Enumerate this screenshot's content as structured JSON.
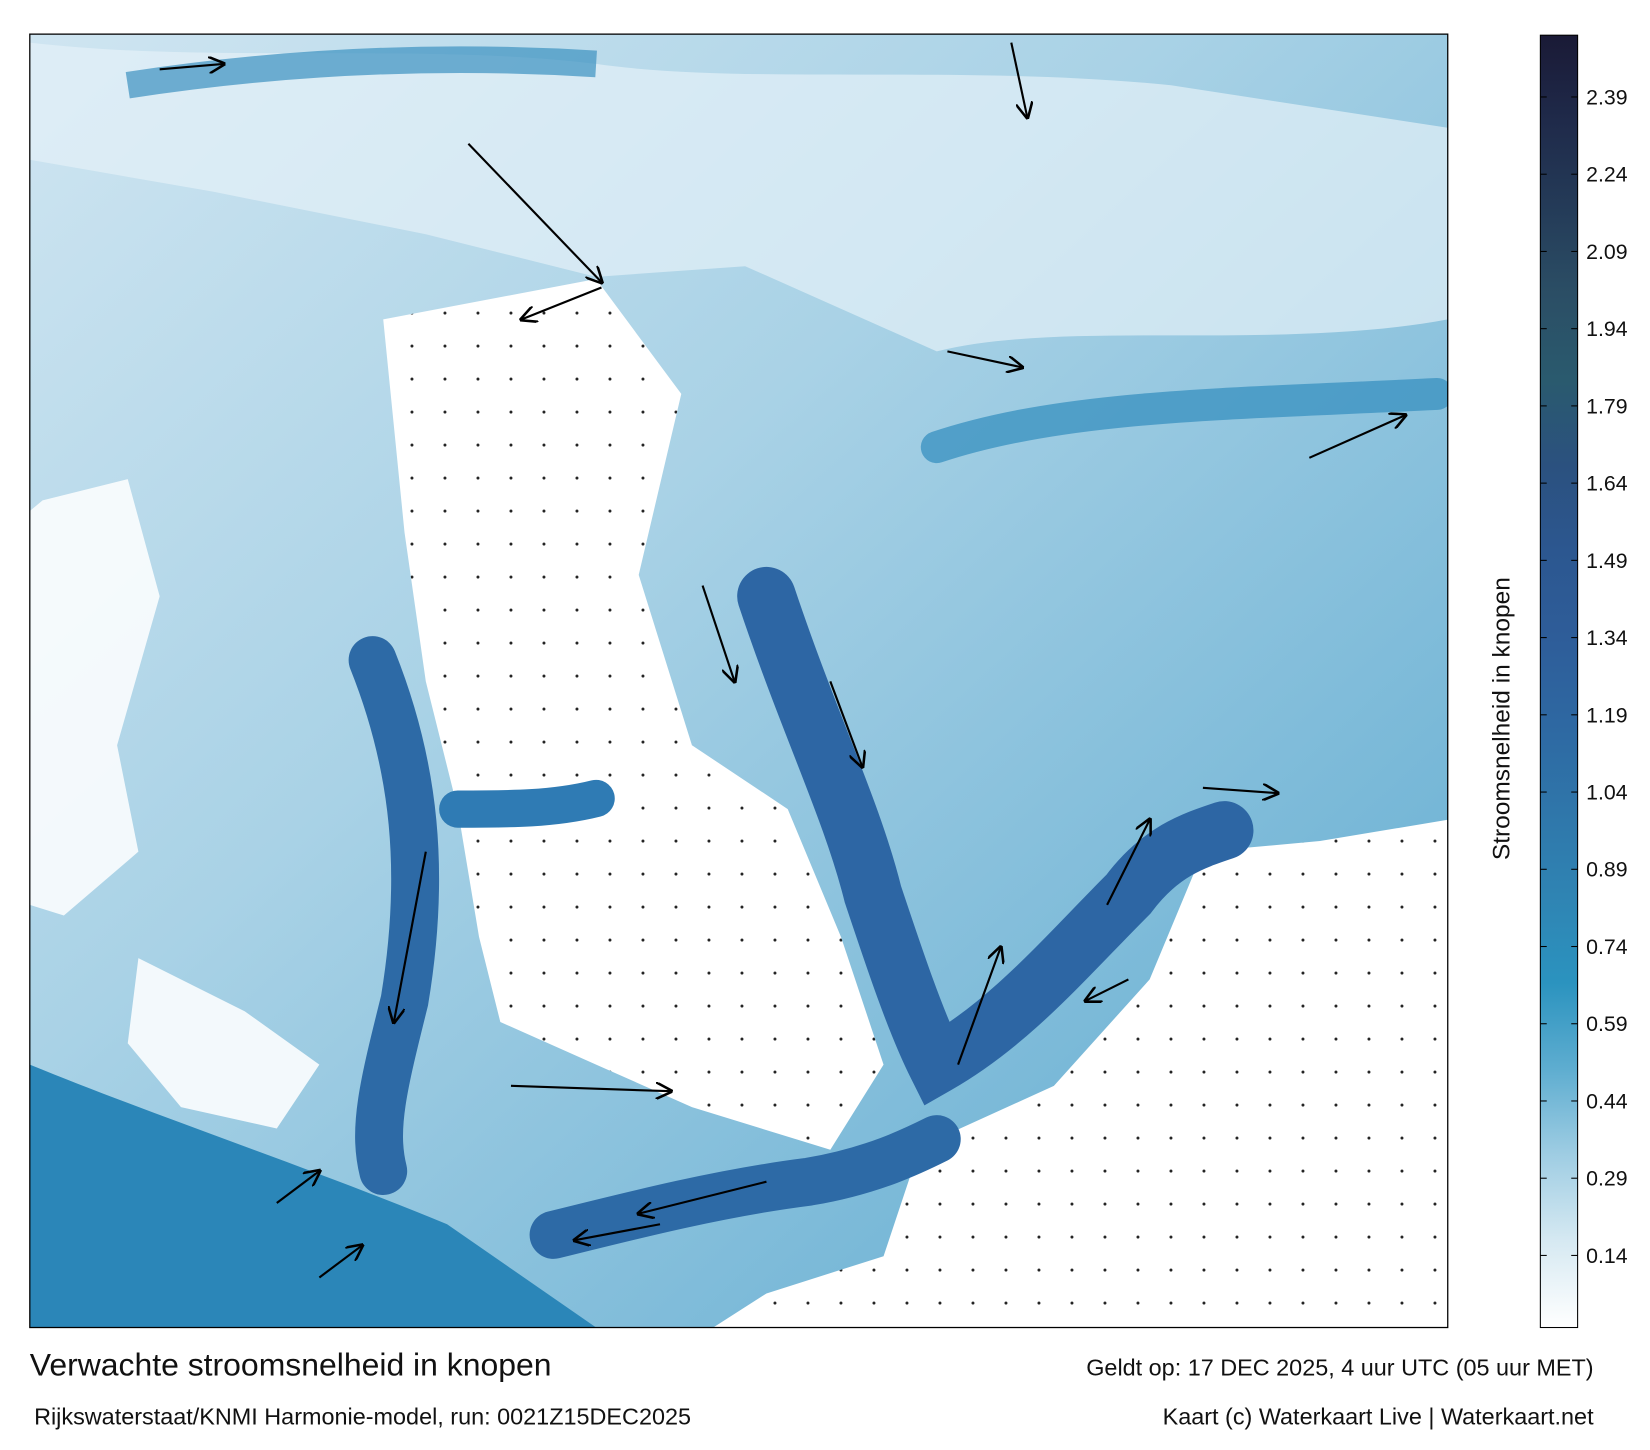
{
  "header": {
    "title": "Verwachte stroomsnelheid in knopen",
    "subtitle": "Rijkswaterstaat/KNMI Harmonie-model, run: 0021Z15DEC2025",
    "valid_time": "Geldt op: 17 DEC 2025, 4 uur UTC (05 uur MET)",
    "credit": "Kaart (c) Waterkaart Live | Waterkaart.net"
  },
  "colorbar": {
    "label": "Stroomsnelheid in knopen",
    "lim": [
      0,
      2.51
    ],
    "ticks": [
      0.14,
      0.29,
      0.44,
      0.59,
      0.74,
      0.89,
      1.04,
      1.19,
      1.34,
      1.49,
      1.64,
      1.79,
      1.94,
      2.09,
      2.24,
      2.39
    ],
    "colors": [
      "#ffffff",
      "#d6e9f2",
      "#9fcde3",
      "#5eadd0",
      "#2b93bf",
      "#2f84b3",
      "#2f76aa",
      "#2e68a2",
      "#2e5d99",
      "#2c5790",
      "#2b517f",
      "#2a5a6e",
      "#2b4e65",
      "#243b58",
      "#1f2a4a",
      "#1a1a36"
    ]
  }
}
